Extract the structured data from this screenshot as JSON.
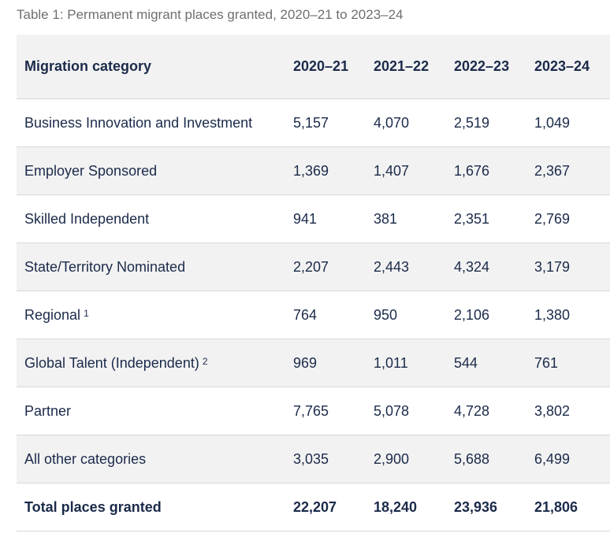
{
  "caption": "Table 1: Permanent migrant places granted, 2020–21 to 2023–24",
  "table": {
    "headers": [
      "Migration category",
      "2020–21",
      "2021–22",
      "2022–23",
      "2023–24"
    ],
    "rows": [
      {
        "category": "Business Innovation and Investment",
        "note": "",
        "values": [
          "5,157",
          "4,070",
          "2,519",
          "1,049"
        ]
      },
      {
        "category": "Employer Sponsored",
        "note": "",
        "values": [
          "1,369",
          "1,407",
          "1,676",
          "2,367"
        ]
      },
      {
        "category": "Skilled Independent",
        "note": "",
        "values": [
          "941",
          "381",
          "2,351",
          "2,769"
        ]
      },
      {
        "category": "State/Territory Nominated",
        "note": "",
        "values": [
          "2,207",
          "2,443",
          "4,324",
          "3,179"
        ]
      },
      {
        "category": "Regional",
        "note": "1",
        "values": [
          "764",
          "950",
          "2,106",
          "1,380"
        ]
      },
      {
        "category": "Global Talent (Independent)",
        "note": "2",
        "values": [
          "969",
          "1,011",
          "544",
          "761"
        ]
      },
      {
        "category": "Partner",
        "note": "",
        "values": [
          "7,765",
          "5,078",
          "4,728",
          "3,802"
        ]
      },
      {
        "category": "All other categories",
        "note": "",
        "values": [
          "3,035",
          "2,900",
          "5,688",
          "6,499"
        ]
      }
    ],
    "total": {
      "category": "Total places granted",
      "values": [
        "22,207",
        "18,240",
        "23,936",
        "21,806"
      ]
    }
  }
}
